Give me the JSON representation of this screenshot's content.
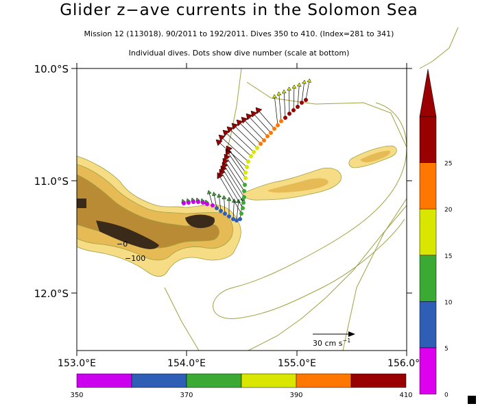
{
  "title": "Glider z−ave currents in the Solomon Sea",
  "subtitle_1": "Mission 12 (113018). 90/2011 to 192/2011. Dives 350 to 410. (Index=281 to 341)",
  "subtitle_2": "Individual dives. Dots show dive number (scale at bottom)",
  "lat_labels": [
    "10.0°S",
    "11.0°S",
    "12.0°S"
  ],
  "lon_labels": [
    "153.0°E",
    "154.0°E",
    "155.0°E",
    "156.0°E"
  ],
  "scale_arrow_label": "30 cm s",
  "scale_arrow_exp": "−1",
  "contour_labels": [
    "−0",
    "−100"
  ],
  "speed_colorbar": {
    "tick_labels": [
      "0",
      "5",
      "10",
      "15",
      "20",
      "25"
    ],
    "colors": [
      "#dd00ee",
      "#2e5eb5",
      "#3aaa35",
      "#d8e600",
      "#ff7700",
      "#990000"
    ]
  },
  "dive_colorbar": {
    "tick_labels": [
      "350",
      "370",
      "390",
      "410"
    ],
    "colors": [
      "#cc00ee",
      "#2e5eb5",
      "#3aaa35",
      "#d8e600",
      "#ff7700",
      "#990000"
    ]
  },
  "colors": {
    "land_light": "#f7dc86",
    "land_mid": "#e6bb55",
    "land_dark": "#b98b35",
    "land_peak": "#3a2a1a",
    "contour": "#a0a040"
  }
}
